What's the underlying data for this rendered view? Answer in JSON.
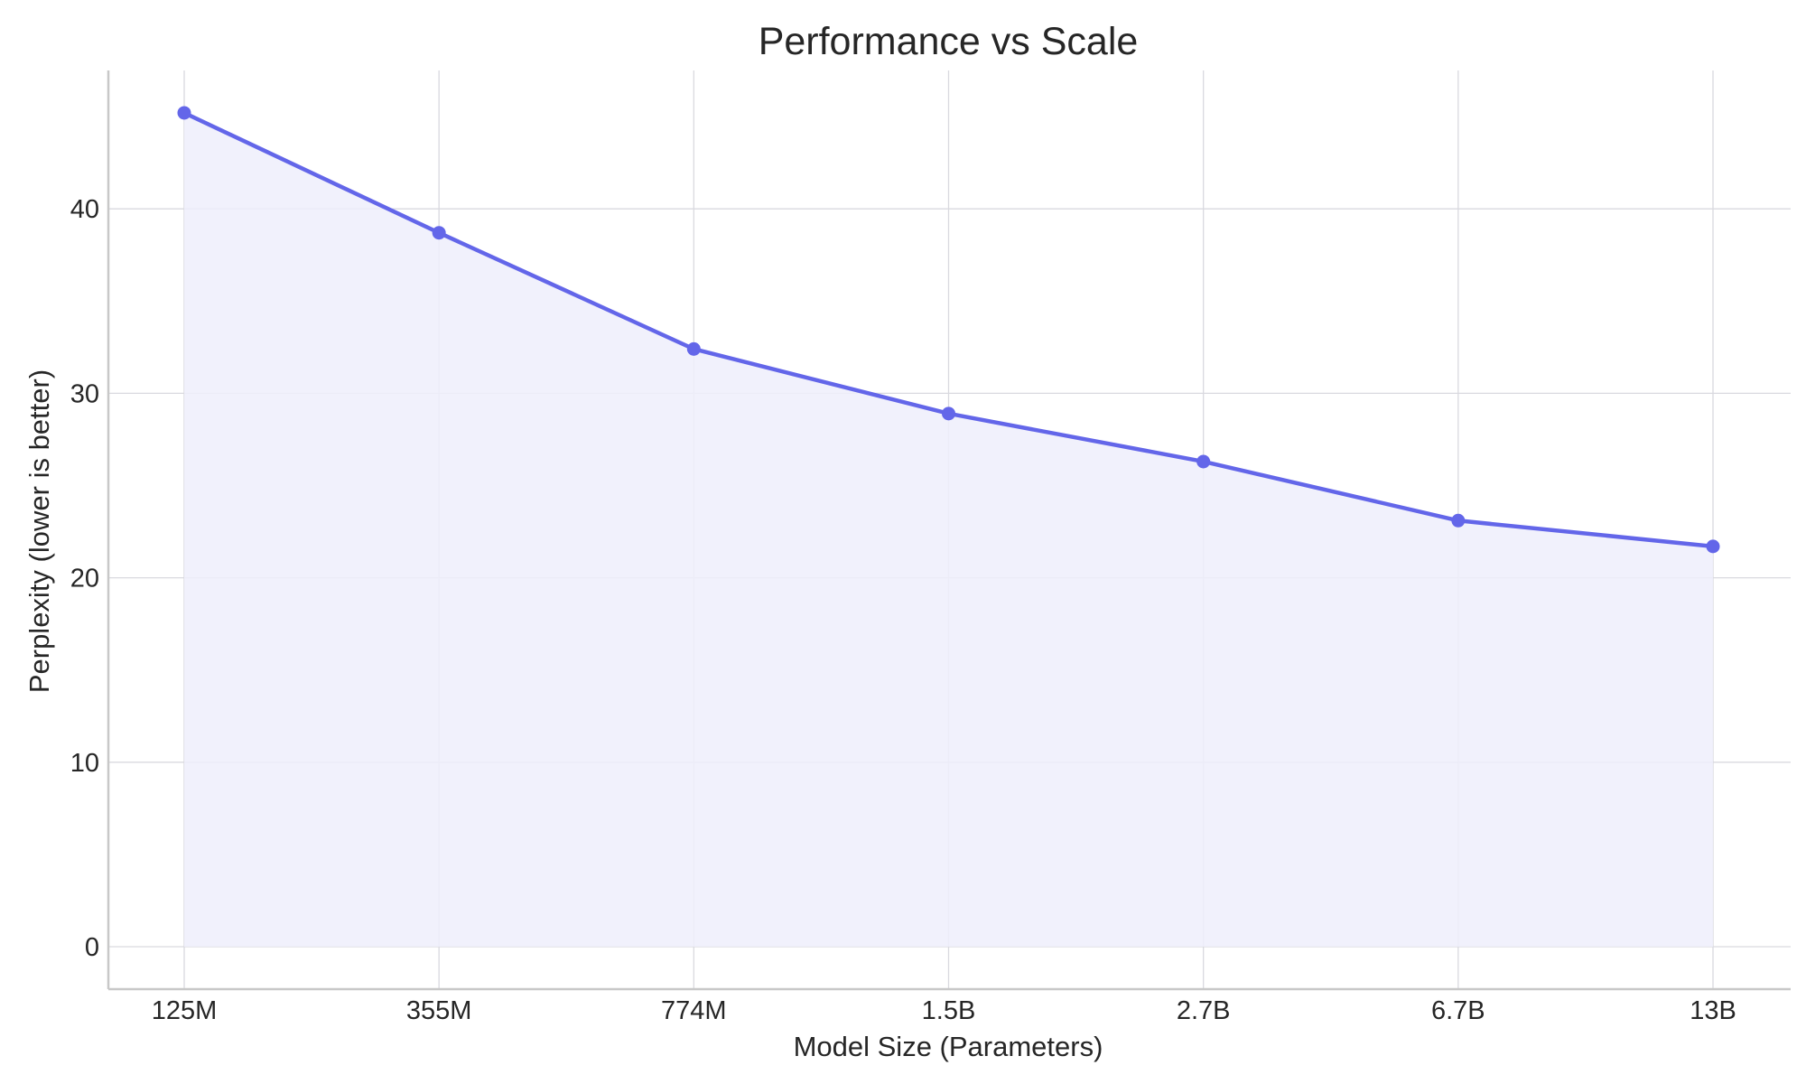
{
  "chart_data": {
    "type": "area",
    "title": "Performance vs Scale",
    "xlabel": "Model Size (Parameters)",
    "ylabel": "Perplexity (lower is better)",
    "categories": [
      "125M",
      "355M",
      "774M",
      "1.5B",
      "2.7B",
      "6.7B",
      "13B"
    ],
    "series": [
      {
        "values": [
          45.2,
          38.7,
          32.4,
          28.9,
          26.3,
          23.1,
          21.7
        ]
      }
    ],
    "ylim": [
      -2.3,
      47.5
    ],
    "yticks": [
      0,
      10,
      20,
      30,
      40
    ],
    "grid": true,
    "legend": "none",
    "colors": {
      "line": "#6366e9",
      "fill": "#efeffb"
    }
  }
}
